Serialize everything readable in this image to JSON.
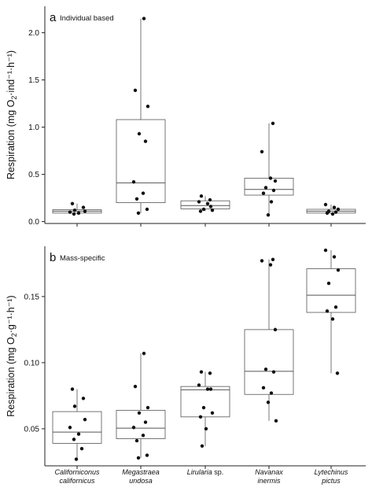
{
  "chart_data": [
    {
      "type": "box",
      "panel_letter": "a",
      "title": "Individual based",
      "ylabel": "Respiration (mg O2·ind⁻¹·h⁻¹)",
      "ylim": [
        -0.02,
        2.28
      ],
      "yticks": [
        0.0,
        0.5,
        1.0,
        1.5,
        2.0
      ],
      "ytick_labels": [
        "0.0",
        "0.5",
        "1.0",
        "1.5",
        "2.0"
      ],
      "grid": false,
      "categories": [
        "Californiconus californicus",
        "Megastraea undosa",
        "Lirularia sp.",
        "Navanax inermis",
        "Lytechinus pictus"
      ],
      "boxes": [
        {
          "min": 0.08,
          "q1": 0.09,
          "median": 0.11,
          "q3": 0.125,
          "max": 0.19
        },
        {
          "min": 0.09,
          "q1": 0.2,
          "median": 0.41,
          "q3": 1.08,
          "max": 2.15
        },
        {
          "min": 0.11,
          "q1": 0.135,
          "median": 0.17,
          "q3": 0.22,
          "max": 0.27
        },
        {
          "min": 0.07,
          "q1": 0.28,
          "median": 0.34,
          "q3": 0.46,
          "max": 1.04
        },
        {
          "min": 0.08,
          "q1": 0.09,
          "median": 0.11,
          "q3": 0.13,
          "max": 0.18
        }
      ],
      "points": [
        [
          0.19,
          0.15,
          0.12,
          0.11,
          0.1,
          0.09,
          0.08
        ],
        [
          2.15,
          1.39,
          1.22,
          0.93,
          0.85,
          0.42,
          0.3,
          0.24,
          0.13,
          0.09
        ],
        [
          0.27,
          0.23,
          0.21,
          0.19,
          0.16,
          0.13,
          0.12,
          0.11
        ],
        [
          1.04,
          0.74,
          0.46,
          0.43,
          0.36,
          0.33,
          0.3,
          0.21,
          0.07
        ],
        [
          0.18,
          0.15,
          0.13,
          0.11,
          0.1,
          0.09,
          0.08
        ]
      ]
    },
    {
      "type": "box",
      "panel_letter": "b",
      "title": "Mass-specific",
      "ylabel": "Respiration (mg O2·g⁻¹·h⁻¹)",
      "ylim": [
        0.022,
        0.188
      ],
      "yticks": [
        0.05,
        0.1,
        0.15
      ],
      "ytick_labels": [
        "0.05",
        "0.10",
        "0.15"
      ],
      "grid": false,
      "categories": [
        "Californiconus californicus",
        "Megastraea undosa",
        "Lirularia sp.",
        "Navanax inermis",
        "Lytechinus pictus"
      ],
      "boxes": [
        {
          "min": 0.027,
          "q1": 0.039,
          "median": 0.0475,
          "q3": 0.063,
          "max": 0.08
        },
        {
          "min": 0.028,
          "q1": 0.0425,
          "median": 0.0505,
          "q3": 0.064,
          "max": 0.107
        },
        {
          "min": 0.037,
          "q1": 0.059,
          "median": 0.0795,
          "q3": 0.082,
          "max": 0.093
        },
        {
          "min": 0.056,
          "q1": 0.076,
          "median": 0.0935,
          "q3": 0.125,
          "max": 0.178
        },
        {
          "min": 0.092,
          "q1": 0.138,
          "median": 0.151,
          "q3": 0.171,
          "max": 0.185
        }
      ],
      "points": [
        [
          0.08,
          0.073,
          0.067,
          0.057,
          0.051,
          0.046,
          0.042,
          0.035,
          0.027
        ],
        [
          0.107,
          0.082,
          0.066,
          0.062,
          0.055,
          0.051,
          0.045,
          0.041,
          0.03,
          0.028
        ],
        [
          0.093,
          0.092,
          0.083,
          0.08,
          0.08,
          0.066,
          0.062,
          0.059,
          0.05,
          0.037
        ],
        [
          0.178,
          0.177,
          0.174,
          0.125,
          0.095,
          0.093,
          0.081,
          0.077,
          0.07,
          0.056
        ],
        [
          0.185,
          0.18,
          0.17,
          0.16,
          0.142,
          0.139,
          0.133,
          0.092
        ]
      ]
    }
  ],
  "x_labels": [
    {
      "line1": "Californiconus",
      "line2": "californicus",
      "italic_line1": true
    },
    {
      "line1": "Megastraea",
      "line2": "undosa",
      "italic_line1": true
    },
    {
      "line1": "Lirularia",
      "suffix": " sp.",
      "line2": "",
      "italic_line1": true
    },
    {
      "line1": "Navanax",
      "line2": "inermis",
      "italic_line1": true
    },
    {
      "line1": "Lytechinus",
      "line2": "pictus",
      "italic_line1": true
    }
  ],
  "colors": {
    "box_stroke": "#555555",
    "points": "#111111",
    "axis": "#222222"
  }
}
